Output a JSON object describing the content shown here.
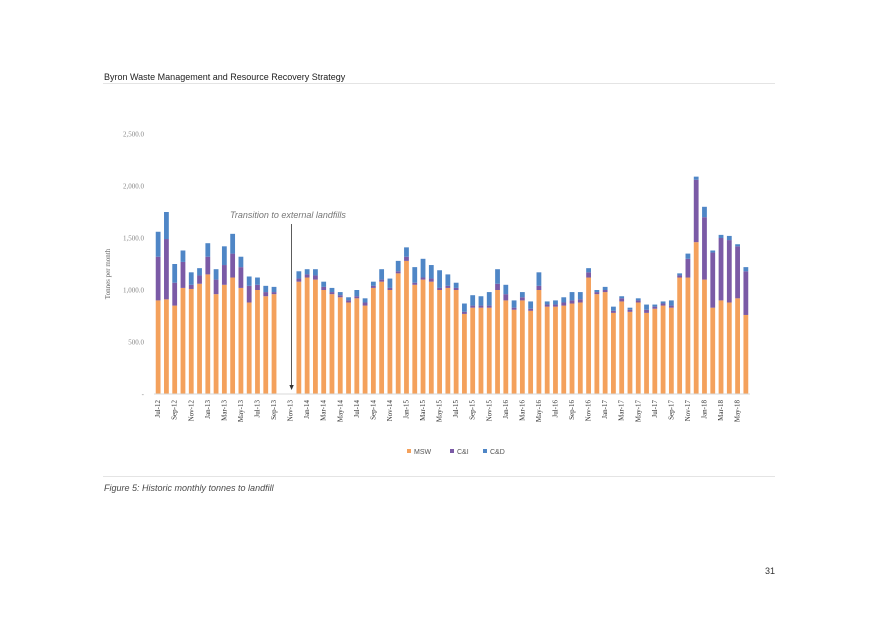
{
  "header": {
    "title": "Byron Waste Management and Resource Recovery Strategy"
  },
  "caption": "Figure 5: Historic monthly tonnes to landfill",
  "page_number": "31",
  "chart_data": {
    "type": "bar",
    "stacked": true,
    "title": "",
    "xlabel": "",
    "ylabel": "Tonnes per month",
    "ylim": [
      0,
      2500
    ],
    "yticks": [
      0,
      500,
      1000,
      1500,
      2000,
      2500
    ],
    "ytick_labels": [
      "-",
      "500.0",
      "1,000.0",
      "1,500.0",
      "2,000.0",
      "2,500.0"
    ],
    "legend_position": "bottom-center",
    "grid": false,
    "annotation": {
      "text": "Transition to external landfills",
      "category": "Nov-13"
    },
    "colors": {
      "MSW": "#f4a15c",
      "C&I": "#7b5aa6",
      "C&D": "#4f86c6"
    },
    "categories": [
      "Jul-12",
      "Aug-12",
      "Sep-12",
      "Oct-12",
      "Nov-12",
      "Dec-12",
      "Jan-13",
      "Feb-13",
      "Mar-13",
      "Apr-13",
      "May-13",
      "Jun-13",
      "Jul-13",
      "Aug-13",
      "Sep-13",
      "Oct-13",
      "Nov-13",
      "Dec-13",
      "Jan-14",
      "Feb-14",
      "Mar-14",
      "Apr-14",
      "May-14",
      "Jun-14",
      "Jul-14",
      "Aug-14",
      "Sep-14",
      "Oct-14",
      "Nov-14",
      "Dec-14",
      "Jan-15",
      "Feb-15",
      "Mar-15",
      "Apr-15",
      "May-15",
      "Jun-15",
      "Jul-15",
      "Aug-15",
      "Sep-15",
      "Oct-15",
      "Nov-15",
      "Dec-15",
      "Jan-16",
      "Feb-16",
      "Mar-16",
      "Apr-16",
      "May-16",
      "Jun-16",
      "Jul-16",
      "Aug-16",
      "Sep-16",
      "Oct-16",
      "Nov-16",
      "Dec-16",
      "Jan-17",
      "Feb-17",
      "Mar-17",
      "Apr-17",
      "May-17",
      "Jun-17",
      "Jul-17",
      "Aug-17",
      "Sep-17",
      "Oct-17",
      "Nov-17",
      "Dec-17",
      "Jan-18",
      "Feb-18",
      "Mar-18",
      "Apr-18",
      "May-18",
      "Jun-18"
    ],
    "tick_labels": [
      "Jul-12",
      "Sep-12",
      "Nov-12",
      "Jan-13",
      "Mar-13",
      "May-13",
      "Jul-13",
      "Sep-13",
      "Nov-13",
      "Jan-14",
      "Mar-14",
      "May-14",
      "Jul-14",
      "Sep-14",
      "Nov-14",
      "Jan-15",
      "Mar-15",
      "May-15",
      "Jul-15",
      "Sep-15",
      "Nov-15",
      "Jan-16",
      "Mar-16",
      "May-16",
      "Jul-16",
      "Sep-16",
      "Nov-16",
      "Jan-17",
      "Mar-17",
      "May-17",
      "Jul-17",
      "Sep-17",
      "Nov-17",
      "Jan-18",
      "Mar-18",
      "May-18"
    ],
    "series": [
      {
        "name": "MSW",
        "values": [
          900,
          910,
          850,
          1020,
          1010,
          1060,
          1150,
          960,
          1050,
          1120,
          1020,
          880,
          1000,
          940,
          960,
          0,
          0,
          1080,
          1120,
          1100,
          1000,
          960,
          930,
          880,
          920,
          850,
          1020,
          1080,
          1000,
          1160,
          1280,
          1050,
          1100,
          1080,
          1000,
          1020,
          1000,
          770,
          830,
          830,
          830,
          1000,
          900,
          810,
          900,
          800,
          1000,
          840,
          840,
          850,
          870,
          880,
          1120,
          960,
          980,
          780,
          890,
          790,
          880,
          780,
          820,
          850,
          830,
          1120,
          1120,
          1460,
          1100,
          830,
          900,
          880,
          920,
          760
        ]
      },
      {
        "name": "C&I",
        "values": [
          420,
          580,
          220,
          250,
          40,
          80,
          170,
          140,
          190,
          230,
          200,
          160,
          50,
          40,
          20,
          0,
          0,
          30,
          30,
          40,
          30,
          20,
          20,
          20,
          20,
          30,
          20,
          20,
          20,
          20,
          40,
          20,
          20,
          30,
          20,
          20,
          20,
          20,
          20,
          20,
          20,
          60,
          60,
          20,
          30,
          20,
          40,
          20,
          20,
          30,
          30,
          30,
          50,
          20,
          20,
          20,
          30,
          20,
          20,
          30,
          20,
          20,
          20,
          20,
          180,
          600,
          600,
          530,
          600,
          600,
          500,
          420
        ]
      },
      {
        "name": "C&D",
        "values": [
          240,
          260,
          180,
          110,
          120,
          70,
          130,
          100,
          180,
          190,
          100,
          90,
          70,
          60,
          50,
          0,
          0,
          70,
          50,
          60,
          50,
          40,
          30,
          30,
          60,
          40,
          40,
          100,
          90,
          100,
          90,
          150,
          180,
          130,
          170,
          110,
          50,
          80,
          100,
          90,
          130,
          140,
          90,
          70,
          50,
          70,
          130,
          30,
          40,
          50,
          80,
          70,
          40,
          20,
          30,
          40,
          20,
          20,
          20,
          50,
          20,
          20,
          50,
          20,
          50,
          30,
          100,
          20,
          30,
          40,
          20,
          40
        ]
      }
    ]
  }
}
